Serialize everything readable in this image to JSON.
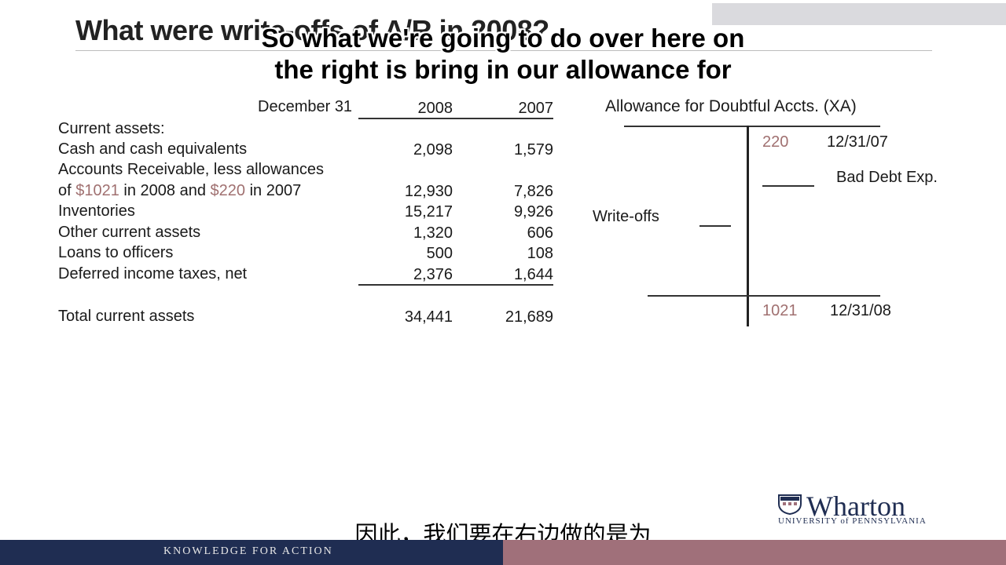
{
  "slide": {
    "title": "What were write-offs of A/R in 2008?",
    "table": {
      "header_label": "December 31",
      "col1": "2008",
      "col2": "2007",
      "section": "Current assets:",
      "rows": [
        {
          "label": "Cash and cash equivalents",
          "v1": "2,098",
          "v2": "1,579"
        },
        {
          "label": "Inventories",
          "v1": "15,217",
          "v2": "9,926"
        },
        {
          "label": "Other current assets",
          "v1": "1,320",
          "v2": "606"
        },
        {
          "label": "Loans to officers",
          "v1": "500",
          "v2": "108"
        },
        {
          "label": "Deferred income taxes, net",
          "v1": "2,376",
          "v2": "1,644"
        }
      ],
      "ar_line1": "Accounts Receivable, less allowances",
      "ar_line2_pre": "of ",
      "ar_amt1": "$1021",
      "ar_line2_mid": " in 2008 and ",
      "ar_amt2": "$220",
      "ar_line2_post": " in 2007",
      "ar_v1": "12,930",
      "ar_v2": "7,826",
      "total_label": "Total current assets",
      "total_v1": "34,441",
      "total_v2": "21,689"
    },
    "t_account": {
      "title": "Allowance for Doubtful Accts. (XA)",
      "begin_value": "220",
      "begin_date": "12/31/07",
      "bad_debt_label": "Bad Debt Exp.",
      "writeoffs_label": "Write-offs",
      "end_value": "1021",
      "end_date": "12/31/08"
    }
  },
  "subtitles": {
    "en_line1": "So what we're going to do over here on",
    "en_line2": "the right is bring in our allowance for",
    "zh": "因此，我们要在右边做的是为"
  },
  "footer": {
    "tagline": "KNOWLEDGE FOR ACTION",
    "logo_word": "Wharton",
    "logo_sub": "UNIVERSITY of PENNSYLVANIA"
  },
  "colors": {
    "navy": "#1f2d52",
    "mauve": "#a0707a",
    "accent_text": "#a07070"
  }
}
